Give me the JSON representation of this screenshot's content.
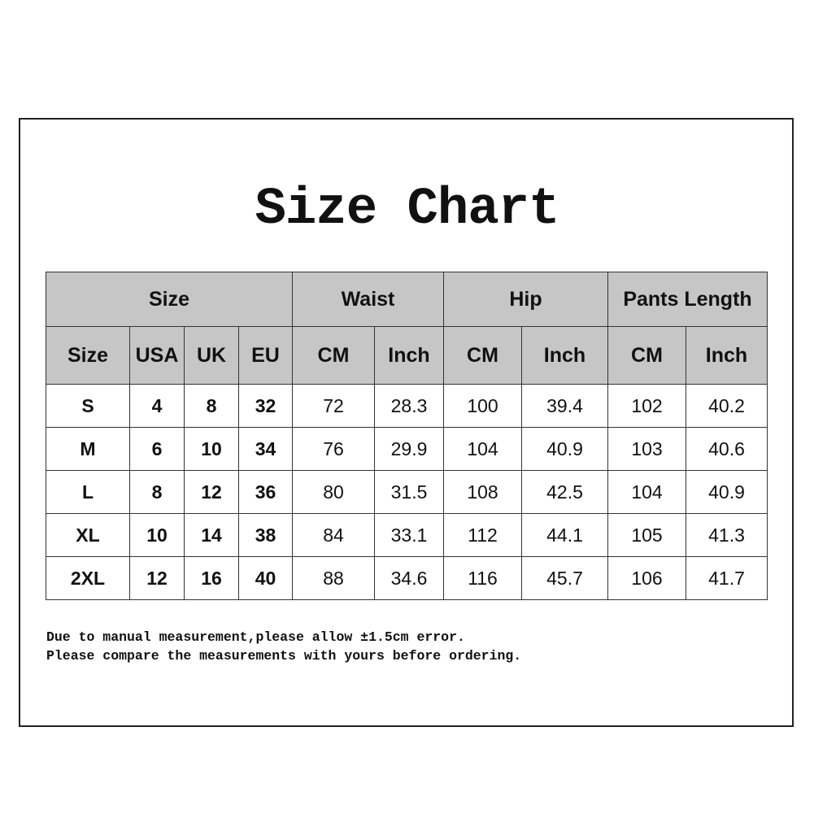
{
  "title": "Size Chart",
  "table": {
    "group_headers": [
      "Size",
      "Waist",
      "Hip",
      "Pants Length"
    ],
    "sub_headers": [
      "Size",
      "USA",
      "UK",
      "EU",
      "CM",
      "Inch",
      "CM",
      "Inch",
      "CM",
      "Inch"
    ],
    "rows": [
      [
        "S",
        "4",
        "8",
        "32",
        "72",
        "28.3",
        "100",
        "39.4",
        "102",
        "40.2"
      ],
      [
        "M",
        "6",
        "10",
        "34",
        "76",
        "29.9",
        "104",
        "40.9",
        "103",
        "40.6"
      ],
      [
        "L",
        "8",
        "12",
        "36",
        "80",
        "31.5",
        "108",
        "42.5",
        "104",
        "40.9"
      ],
      [
        "XL",
        "10",
        "14",
        "38",
        "84",
        "33.1",
        "112",
        "44.1",
        "105",
        "41.3"
      ],
      [
        "2XL",
        "12",
        "16",
        "40",
        "88",
        "34.6",
        "116",
        "45.7",
        "106",
        "41.7"
      ]
    ]
  },
  "notes": [
    "Due to manual measurement,please allow ±1.5cm error.",
    "Please compare the measurements with yours before ordering."
  ],
  "colors": {
    "header_bg": "#c6c6c6",
    "border": "#333333"
  }
}
